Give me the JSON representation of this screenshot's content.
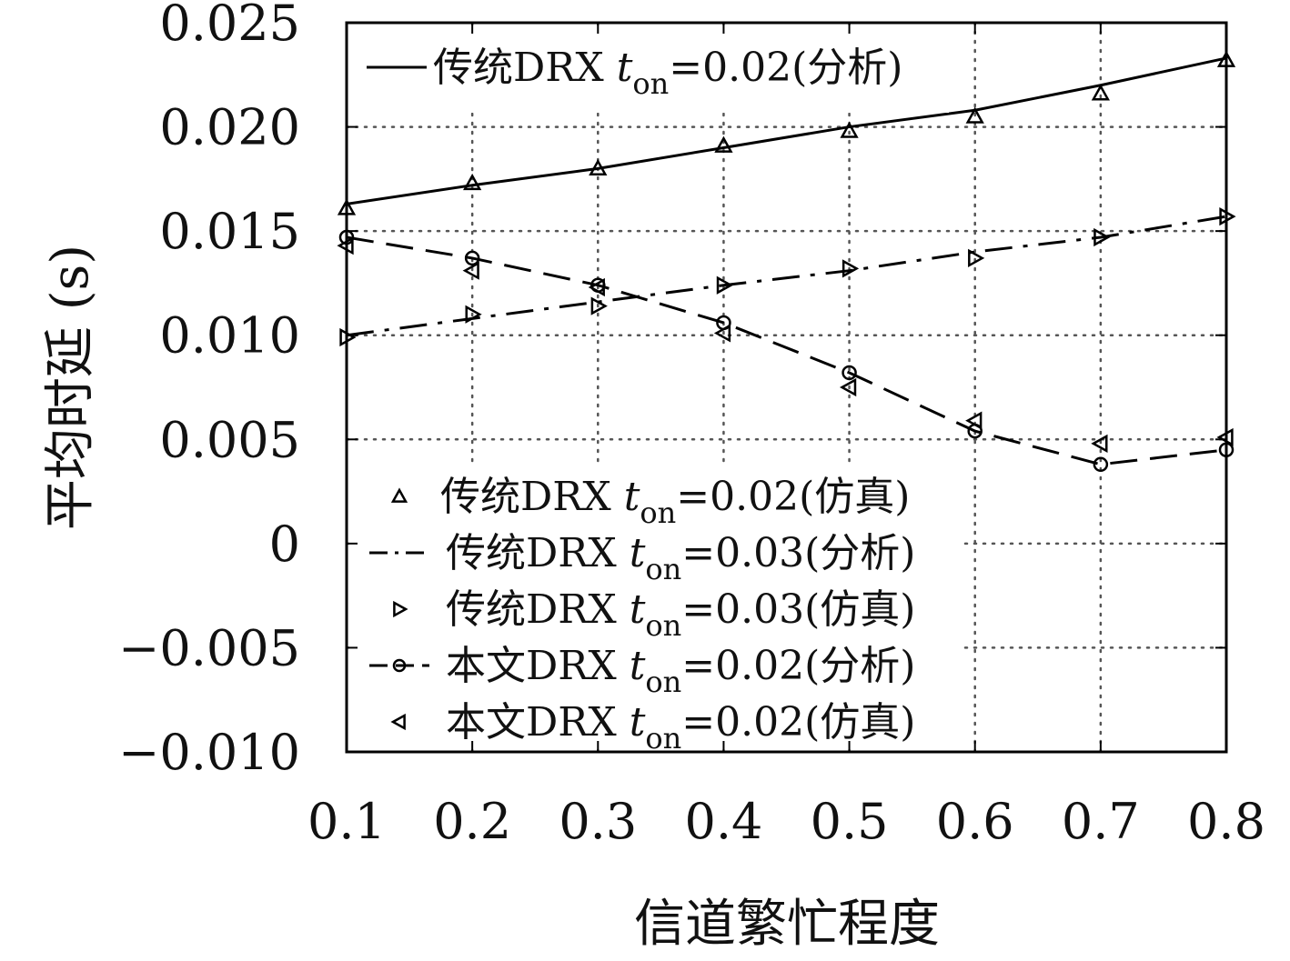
{
  "chart_data": {
    "type": "line",
    "title": "",
    "xlabel": "信道繁忙程度",
    "ylabel": "平均时延 (s)",
    "xlim": [
      0.1,
      0.8
    ],
    "ylim": [
      -0.01,
      0.025
    ],
    "x_ticks": [
      "0.1",
      "0.2",
      "0.3",
      "0.4",
      "0.5",
      "0.6",
      "0.7",
      "0.8"
    ],
    "y_ticks": [
      "0.025",
      "0.020",
      "0.015",
      "0.010",
      "0.005",
      "0",
      "−0.005",
      "−0.010"
    ],
    "grid": true,
    "x": [
      0.1,
      0.2,
      0.3,
      0.4,
      0.5,
      0.6,
      0.7,
      0.8
    ],
    "series": [
      {
        "name": "传统DRX t_on=0.02(分析)",
        "label_main": "传统DRX ",
        "label_t": "t",
        "label_sub": "on",
        "label_rest": "=0.02(分析)",
        "style": "solid",
        "marker": "none",
        "values": [
          0.0163,
          0.0172,
          0.018,
          0.019,
          0.02,
          0.0208,
          0.022,
          0.0233
        ]
      },
      {
        "name": "传统DRX t_on=0.02(仿真)",
        "label_main": "传统DRX ",
        "label_t": "t",
        "label_sub": "on",
        "label_rest": "=0.02(仿真)",
        "style": "none",
        "marker": "triangle-up",
        "values": [
          0.0161,
          0.0173,
          0.018,
          0.0191,
          0.0198,
          0.0205,
          0.0216,
          0.0232
        ]
      },
      {
        "name": "传统DRX t_on=0.03(分析)",
        "label_main": "传统DRX ",
        "label_t": "t",
        "label_sub": "on",
        "label_rest": "=0.03(分析)",
        "style": "dash-dot",
        "marker": "none",
        "values": [
          0.01,
          0.0108,
          0.0116,
          0.0124,
          0.0131,
          0.014,
          0.0147,
          0.0157
        ]
      },
      {
        "name": "传统DRX t_on=0.03(仿真)",
        "label_main": "传统DRX ",
        "label_t": "t",
        "label_sub": "on",
        "label_rest": "=0.03(仿真)",
        "style": "none",
        "marker": "triangle-right",
        "values": [
          0.0099,
          0.011,
          0.0114,
          0.0124,
          0.0132,
          0.0137,
          0.0147,
          0.0157
        ]
      },
      {
        "name": "本文DRX t_on=0.02(分析)",
        "label_main": "本文DRX ",
        "label_t": "t",
        "label_sub": "on",
        "label_rest": "=0.02(分析)",
        "style": "dashed",
        "marker": "circle",
        "values": [
          0.0147,
          0.0137,
          0.0124,
          0.0106,
          0.0082,
          0.0054,
          0.0038,
          0.0045
        ]
      },
      {
        "name": "本文DRX t_on=0.02(仿真)",
        "label_main": "本文DRX ",
        "label_t": "t",
        "label_sub": "on",
        "label_rest": "=0.02(仿真)",
        "style": "none",
        "marker": "triangle-left",
        "values": [
          0.0143,
          0.0131,
          0.0123,
          0.0101,
          0.0075,
          0.0059,
          0.0048,
          0.0051
        ]
      }
    ],
    "colors": {
      "line": "#000000",
      "grid": "#555555",
      "background": "#ffffff"
    }
  }
}
